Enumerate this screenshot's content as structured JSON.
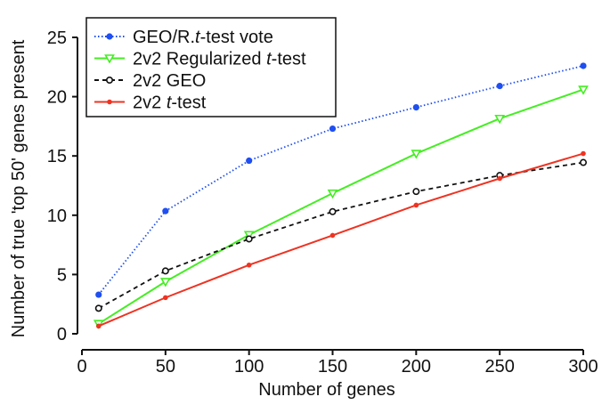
{
  "chart_data": {
    "type": "line",
    "title": "",
    "xlabel": "Number of genes",
    "ylabel": "Number of true 'top 50' genes present",
    "xlim": [
      0,
      300
    ],
    "ylim": [
      0,
      25
    ],
    "xticks": [
      0,
      50,
      100,
      150,
      200,
      250,
      300
    ],
    "yticks": [
      0,
      5,
      10,
      15,
      20,
      25
    ],
    "grid": false,
    "legend_position": "top-left",
    "x": [
      10,
      50,
      100,
      150,
      200,
      250,
      300
    ],
    "series": [
      {
        "name": "GEO/R. t-test vote",
        "label_parts": [
          "GEO/R.",
          "t",
          "-test vote"
        ],
        "color": "#1f4ff0",
        "line": "dotted",
        "marker": "filled-circle",
        "values": [
          3.3,
          10.35,
          14.6,
          17.3,
          19.1,
          20.9,
          22.6
        ]
      },
      {
        "name": "2v2 Regularized t-test",
        "label_parts": [
          "2v2 Regularized ",
          "t",
          "-test"
        ],
        "color": "#44ee22",
        "line": "solid",
        "marker": "open-triangle-down",
        "values": [
          0.85,
          4.4,
          8.35,
          11.85,
          15.2,
          18.15,
          20.6
        ]
      },
      {
        "name": "2v2 GEO",
        "label_parts": [
          "2v2 GEO",
          "",
          ""
        ],
        "color": "#111111",
        "line": "dashed",
        "marker": "open-circle",
        "values": [
          2.15,
          5.3,
          8.0,
          10.3,
          12.0,
          13.35,
          14.45
        ]
      },
      {
        "name": "2v2 t-test",
        "label_parts": [
          "2v2 ",
          "t",
          "-test"
        ],
        "color": "#ee3322",
        "line": "solid",
        "marker": "small-filled-circle",
        "values": [
          0.65,
          3.05,
          5.8,
          8.3,
          10.85,
          13.1,
          15.2
        ]
      }
    ]
  }
}
